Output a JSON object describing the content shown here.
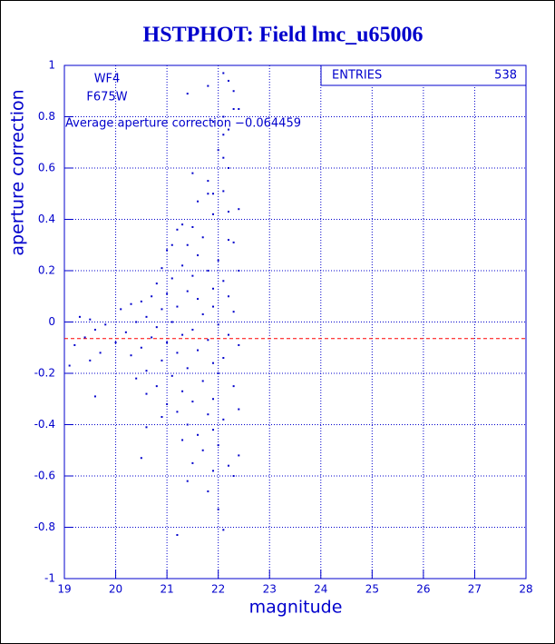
{
  "chart_data": {
    "type": "scatter",
    "title": "HSTPHOT: Field lmc_u65006",
    "x_label": "magnitude",
    "y_label": "aperture correction",
    "annotations": [
      "WF4",
      "F675W",
      "Average aperture correction −0.064459"
    ],
    "stats": {
      "label": "ENTRIES",
      "value": 538
    },
    "hline": -0.064459,
    "hline_color": "#ff0000",
    "color": "#0000cc",
    "grid": true,
    "xlim": [
      19,
      28
    ],
    "xticks": [
      19,
      20,
      21,
      22,
      23,
      24,
      25,
      26,
      27,
      28
    ],
    "ylim": [
      -1,
      1
    ],
    "yticks": [
      -1,
      -0.8,
      -0.6,
      -0.4,
      -0.2,
      0,
      0.2,
      0.4,
      0.6,
      0.8,
      1
    ],
    "x": [
      22.1,
      22.2,
      22.3,
      21.4,
      21.8,
      22.3,
      22.4,
      22.1,
      22.2,
      22.1,
      21.9,
      22.0,
      22.1,
      22.2,
      21.5,
      21.8,
      21.8,
      21.9,
      22.1,
      21.6,
      22.4,
      22.2,
      21.9,
      21.3,
      21.5,
      21.2,
      21.7,
      22.3,
      22.2,
      21.4,
      21.1,
      21.0,
      21.6,
      22.0,
      21.3,
      20.9,
      21.8,
      22.4,
      21.5,
      21.1,
      22.1,
      20.8,
      21.9,
      21.4,
      21.0,
      20.7,
      22.2,
      21.6,
      20.5,
      20.3,
      21.2,
      21.9,
      20.9,
      20.1,
      22.3,
      21.7,
      20.6,
      19.3,
      19.5,
      21.1,
      20.4,
      19.8,
      22.0,
      20.8,
      21.5,
      19.6,
      20.2,
      21.3,
      22.2,
      19.4,
      20.7,
      21.8,
      20.0,
      21.0,
      19.2,
      22.4,
      20.5,
      21.6,
      19.7,
      21.2,
      20.3,
      22.1,
      19.5,
      20.9,
      21.9,
      19.1,
      21.4,
      20.6,
      22.0,
      21.1,
      20.4,
      21.7,
      20.8,
      22.3,
      21.3,
      20.6,
      19.6,
      21.9,
      21.5,
      21.0,
      22.4,
      21.2,
      21.8,
      20.9,
      22.1,
      21.4,
      20.6,
      21.9,
      21.6,
      21.3,
      22.0,
      21.7,
      22.4,
      20.5,
      21.5,
      22.2,
      21.9,
      21.4,
      22.3,
      21.8,
      22.0,
      22.1,
      21.2
    ],
    "y": [
      0.97,
      0.94,
      0.9,
      0.89,
      0.92,
      0.83,
      0.83,
      0.8,
      0.75,
      0.73,
      0.78,
      0.67,
      0.64,
      0.6,
      0.58,
      0.55,
      0.5,
      0.5,
      0.51,
      0.47,
      0.44,
      0.43,
      0.42,
      0.38,
      0.37,
      0.36,
      0.33,
      0.31,
      0.32,
      0.3,
      0.3,
      0.28,
      0.26,
      0.24,
      0.22,
      0.21,
      0.2,
      0.2,
      0.18,
      0.17,
      0.16,
      0.15,
      0.13,
      0.12,
      0.11,
      0.1,
      0.1,
      0.09,
      0.08,
      0.07,
      0.06,
      0.06,
      0.05,
      0.05,
      0.04,
      0.03,
      0.02,
      0.02,
      0.01,
      0.0,
      0.0,
      -0.01,
      -0.01,
      -0.02,
      -0.03,
      -0.03,
      -0.04,
      -0.05,
      -0.05,
      -0.06,
      -0.06,
      -0.07,
      -0.08,
      -0.08,
      -0.09,
      -0.09,
      -0.1,
      -0.11,
      -0.12,
      -0.12,
      -0.13,
      -0.14,
      -0.15,
      -0.15,
      -0.16,
      -0.17,
      -0.18,
      -0.19,
      -0.2,
      -0.21,
      -0.22,
      -0.23,
      -0.25,
      -0.25,
      -0.27,
      -0.28,
      -0.29,
      -0.3,
      -0.31,
      -0.32,
      -0.34,
      -0.35,
      -0.36,
      -0.37,
      -0.38,
      -0.4,
      -0.41,
      -0.42,
      -0.44,
      -0.46,
      -0.48,
      -0.5,
      -0.52,
      -0.53,
      -0.55,
      -0.56,
      -0.58,
      -0.62,
      -0.6,
      -0.66,
      -0.73,
      -0.81,
      -0.83
    ]
  }
}
